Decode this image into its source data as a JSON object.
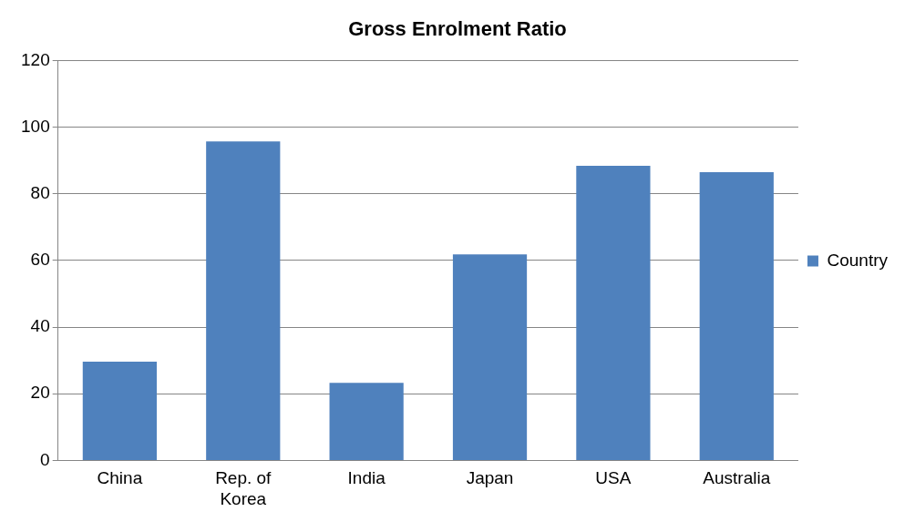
{
  "chart_data": {
    "type": "bar",
    "title": "Gross Enrolment Ratio",
    "categories": [
      "China",
      "Rep. of Korea",
      "India",
      "Japan",
      "USA",
      "Australia"
    ],
    "series": [
      {
        "name": "Country",
        "color": "#4f81bd",
        "values": [
          29.6,
          95.7,
          23.3,
          61.8,
          88.4,
          86.5
        ]
      }
    ],
    "ylim": [
      0,
      120
    ],
    "yticks": [
      0,
      20,
      40,
      60,
      80,
      100,
      120
    ],
    "grid": "y",
    "legend": "right"
  }
}
